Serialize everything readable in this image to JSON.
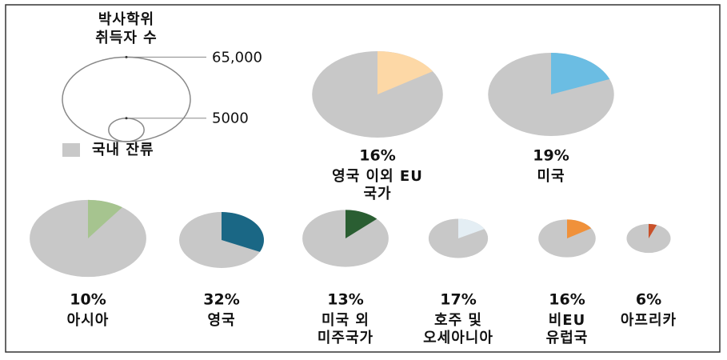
{
  "chart_data": {
    "type": "pie",
    "title": "박사학위\n취득자 수",
    "size_legend": [
      {
        "value": 65000,
        "label": "65,000"
      },
      5000
    ],
    "base_label": "국내 잔류",
    "base_color": "#c8c8c8",
    "series": [
      {
        "name": "영국 이외 EU\n국가",
        "color": "#fdd8a6",
        "total": 68000,
        "value": 16,
        "value_label": "16%"
      },
      {
        "name": "미국",
        "color": "#6bbde3",
        "total": 63000,
        "value": 19,
        "value_label": "19%"
      },
      {
        "name": "아시아",
        "color": "#a6c48f",
        "total": 54000,
        "value": 10,
        "value_label": "10%"
      },
      {
        "name": "영국",
        "color": "#1a6785",
        "total": 28500,
        "value": 32,
        "value_label": "32%"
      },
      {
        "name": "미국 외\n미주국가",
        "color": "#2a5e32",
        "total": 29500,
        "value": 13,
        "value_label": "13%"
      },
      {
        "name": "호주 및\n오세아니아",
        "color": "#e4eef4",
        "total": 14000,
        "value": 17,
        "value_label": "17%"
      },
      {
        "name": "비EU\n유럽국",
        "color": "#f0913a",
        "total": 13000,
        "value": 16,
        "value_label": "16%"
      },
      {
        "name": "아프리카",
        "color": "#c9512a",
        "total": 7700,
        "value": 6,
        "value_label": "6%"
      }
    ]
  }
}
